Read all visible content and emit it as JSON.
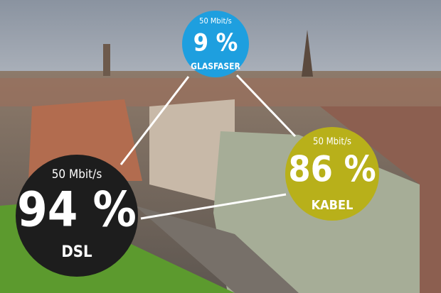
{
  "items": [
    {
      "speed": "50 Mbit/s",
      "share": "9 %",
      "label": "GLASFASER"
    },
    {
      "speed": "50 Mbit/s",
      "share": "86 %",
      "label": "KABEL"
    },
    {
      "speed": "50 Mbit/s",
      "share": "94 %",
      "label": "DSL"
    }
  ]
}
